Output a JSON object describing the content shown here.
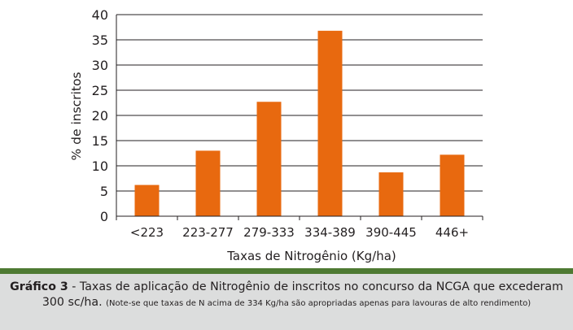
{
  "chart_data": {
    "type": "bar",
    "categories": [
      "<223",
      "223-277",
      "279-333",
      "334-389",
      "390-445",
      "446+"
    ],
    "values": [
      6.2,
      13.0,
      22.7,
      36.8,
      8.7,
      12.2
    ],
    "xlabel": "Taxas de Nitrogênio (Kg/ha)",
    "ylabel": "% de inscritos",
    "ylim": [
      0,
      40
    ],
    "yticks": [
      0,
      5,
      10,
      15,
      20,
      25,
      30,
      35,
      40
    ],
    "grid": true,
    "bar_color": "#e8690f",
    "grid_color": "#231f20"
  },
  "caption": {
    "label": "Gráfico 3",
    "text": " - Taxas de aplicação de Nitrogênio de inscritos no concurso da NCGA que excederam 300 sc/ha. ",
    "note": "(Note-se que taxas de N acima de 334 Kg/ha são apropriadas apenas para lavouras de alto rendimento)"
  },
  "colors": {
    "divider": "#4e7a33",
    "caption_background": "#dcdddd"
  }
}
